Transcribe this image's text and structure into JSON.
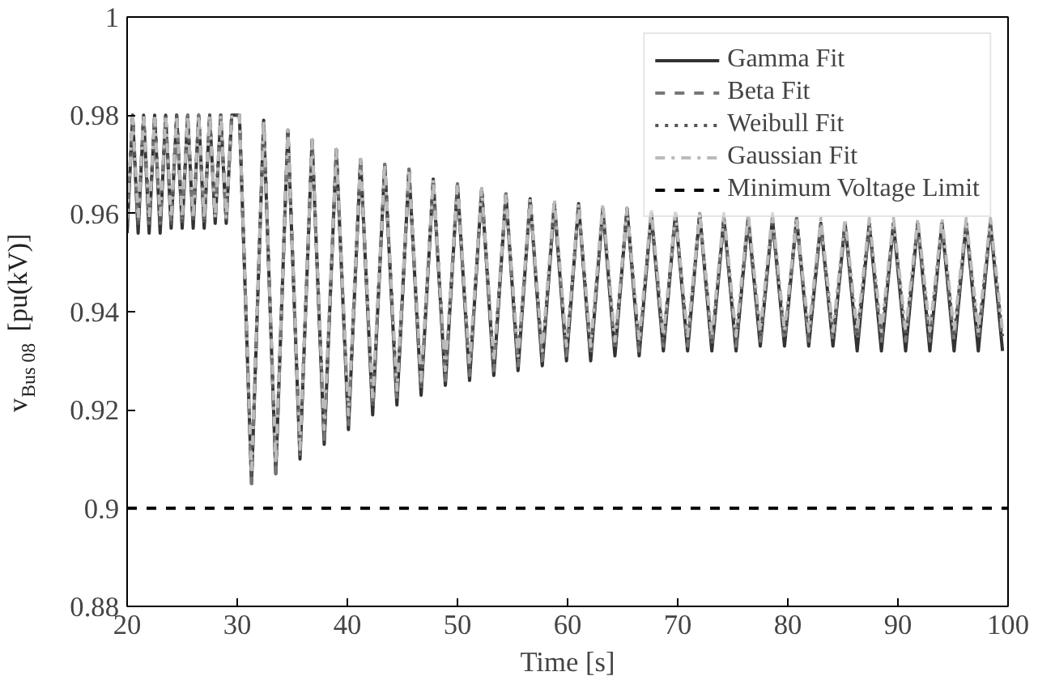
{
  "chart_data": {
    "type": "line",
    "xlabel": "Time [s]",
    "ylabel": "v$_{Bus 08}$ [pu(kV)]",
    "xlim": [
      20,
      100
    ],
    "ylim": [
      0.88,
      1
    ],
    "xticks": [
      20,
      30,
      40,
      50,
      60,
      70,
      80,
      90,
      100
    ],
    "yticks": [
      0.88,
      0.9,
      0.92,
      0.94,
      0.96,
      0.98,
      1
    ],
    "grid": false,
    "legend": "top right",
    "marker": "none",
    "x": [
      20,
      20.5,
      21,
      21.5,
      22,
      22.5,
      23,
      23.5,
      24,
      24.5,
      25,
      25.5,
      26,
      26.5,
      27,
      27.5,
      28,
      28.5,
      29,
      29.5,
      30.2,
      31.3,
      32.4,
      33.5,
      34.6,
      35.7,
      36.8,
      37.9,
      39,
      40.1,
      41.2,
      42.3,
      43.4,
      44.5,
      45.6,
      46.7,
      47.8,
      48.9,
      50,
      51.1,
      52.2,
      53.3,
      54.4,
      55.5,
      56.6,
      57.7,
      58.8,
      59.9,
      61,
      62.1,
      63.2,
      64.3,
      65.4,
      66.5,
      67.6,
      68.7,
      69.8,
      70.9,
      72,
      73.1,
      74.2,
      75.3,
      76.4,
      77.5,
      78.6,
      79.7,
      80.8,
      81.9,
      83,
      84.1,
      85.2,
      86.3,
      87.4,
      88.5,
      89.6,
      90.7,
      91.8,
      92.9,
      94,
      95.1,
      96.2,
      97.3,
      98.4,
      99.5
    ],
    "series": [
      {
        "name": "Gamma Fit",
        "color": "#333333",
        "line_style": "solid",
        "values": [
          0.956,
          0.98,
          0.956,
          0.98,
          0.956,
          0.98,
          0.956,
          0.98,
          0.957,
          0.98,
          0.957,
          0.98,
          0.957,
          0.98,
          0.957,
          0.98,
          0.958,
          0.98,
          0.958,
          0.98,
          0.98,
          0.905,
          0.979,
          0.907,
          0.977,
          0.91,
          0.975,
          0.913,
          0.973,
          0.916,
          0.971,
          0.919,
          0.97,
          0.921,
          0.969,
          0.923,
          0.967,
          0.925,
          0.966,
          0.926,
          0.965,
          0.927,
          0.964,
          0.928,
          0.963,
          0.929,
          0.962,
          0.93,
          0.962,
          0.93,
          0.961,
          0.931,
          0.961,
          0.931,
          0.96,
          0.932,
          0.96,
          0.932,
          0.96,
          0.932,
          0.959,
          0.932,
          0.959,
          0.933,
          0.959,
          0.933,
          0.959,
          0.933,
          0.958,
          0.933,
          0.958,
          0.932,
          0.958,
          0.932,
          0.958,
          0.932,
          0.958,
          0.932,
          0.958,
          0.932,
          0.958,
          0.932,
          0.958,
          0.932
        ]
      },
      {
        "name": "Beta Fit",
        "color": "#777777",
        "line_style": "dashed",
        "values": [
          0.958,
          0.98,
          0.958,
          0.98,
          0.958,
          0.98,
          0.958,
          0.98,
          0.958,
          0.98,
          0.958,
          0.98,
          0.958,
          0.98,
          0.958,
          0.98,
          0.959,
          0.98,
          0.959,
          0.98,
          0.98,
          0.905,
          0.979,
          0.907,
          0.977,
          0.911,
          0.975,
          0.914,
          0.973,
          0.917,
          0.971,
          0.92,
          0.97,
          0.922,
          0.969,
          0.924,
          0.967,
          0.926,
          0.966,
          0.927,
          0.965,
          0.928,
          0.964,
          0.929,
          0.963,
          0.93,
          0.962,
          0.931,
          0.962,
          0.931,
          0.961,
          0.932,
          0.961,
          0.932,
          0.96,
          0.933,
          0.96,
          0.933,
          0.96,
          0.933,
          0.959,
          0.933,
          0.959,
          0.934,
          0.959,
          0.934,
          0.959,
          0.934,
          0.958,
          0.934,
          0.958,
          0.934,
          0.958,
          0.934,
          0.958,
          0.934,
          0.958,
          0.934,
          0.958,
          0.934,
          0.958,
          0.934,
          0.958,
          0.934
        ]
      },
      {
        "name": "Weibull Fit",
        "color": "#555555",
        "line_style": "dotted",
        "values": [
          0.958,
          0.98,
          0.958,
          0.98,
          0.958,
          0.98,
          0.958,
          0.98,
          0.958,
          0.98,
          0.958,
          0.98,
          0.958,
          0.98,
          0.958,
          0.98,
          0.959,
          0.98,
          0.959,
          0.98,
          0.98,
          0.906,
          0.979,
          0.908,
          0.977,
          0.911,
          0.975,
          0.915,
          0.973,
          0.918,
          0.971,
          0.921,
          0.97,
          0.923,
          0.969,
          0.925,
          0.967,
          0.927,
          0.966,
          0.928,
          0.965,
          0.929,
          0.964,
          0.93,
          0.963,
          0.931,
          0.962,
          0.932,
          0.962,
          0.932,
          0.961,
          0.933,
          0.961,
          0.933,
          0.96,
          0.934,
          0.96,
          0.934,
          0.96,
          0.934,
          0.959,
          0.934,
          0.959,
          0.935,
          0.959,
          0.935,
          0.959,
          0.935,
          0.958,
          0.935,
          0.958,
          0.935,
          0.958,
          0.935,
          0.958,
          0.935,
          0.958,
          0.935,
          0.958,
          0.935,
          0.958,
          0.935,
          0.958,
          0.935
        ]
      },
      {
        "name": "Gaussian Fit",
        "color": "#bbbbbb",
        "line_style": "dashdot",
        "values": [
          0.959,
          0.98,
          0.959,
          0.98,
          0.959,
          0.98,
          0.959,
          0.98,
          0.959,
          0.98,
          0.959,
          0.98,
          0.959,
          0.98,
          0.959,
          0.98,
          0.959,
          0.98,
          0.959,
          0.98,
          0.98,
          0.907,
          0.979,
          0.909,
          0.977,
          0.912,
          0.975,
          0.916,
          0.973,
          0.919,
          0.971,
          0.922,
          0.97,
          0.924,
          0.969,
          0.926,
          0.967,
          0.928,
          0.966,
          0.929,
          0.965,
          0.93,
          0.964,
          0.931,
          0.963,
          0.932,
          0.963,
          0.933,
          0.962,
          0.933,
          0.962,
          0.934,
          0.961,
          0.934,
          0.961,
          0.935,
          0.96,
          0.935,
          0.96,
          0.935,
          0.96,
          0.935,
          0.96,
          0.936,
          0.96,
          0.936,
          0.959,
          0.936,
          0.959,
          0.936,
          0.959,
          0.936,
          0.959,
          0.936,
          0.959,
          0.936,
          0.959,
          0.936,
          0.959,
          0.936,
          0.959,
          0.936,
          0.959,
          0.936
        ]
      }
    ],
    "ref_lines": [
      {
        "axis": "y",
        "value": 0.9,
        "label": "Minimum Voltage Limit",
        "color": "#000000",
        "line_style": "dashed"
      }
    ]
  }
}
